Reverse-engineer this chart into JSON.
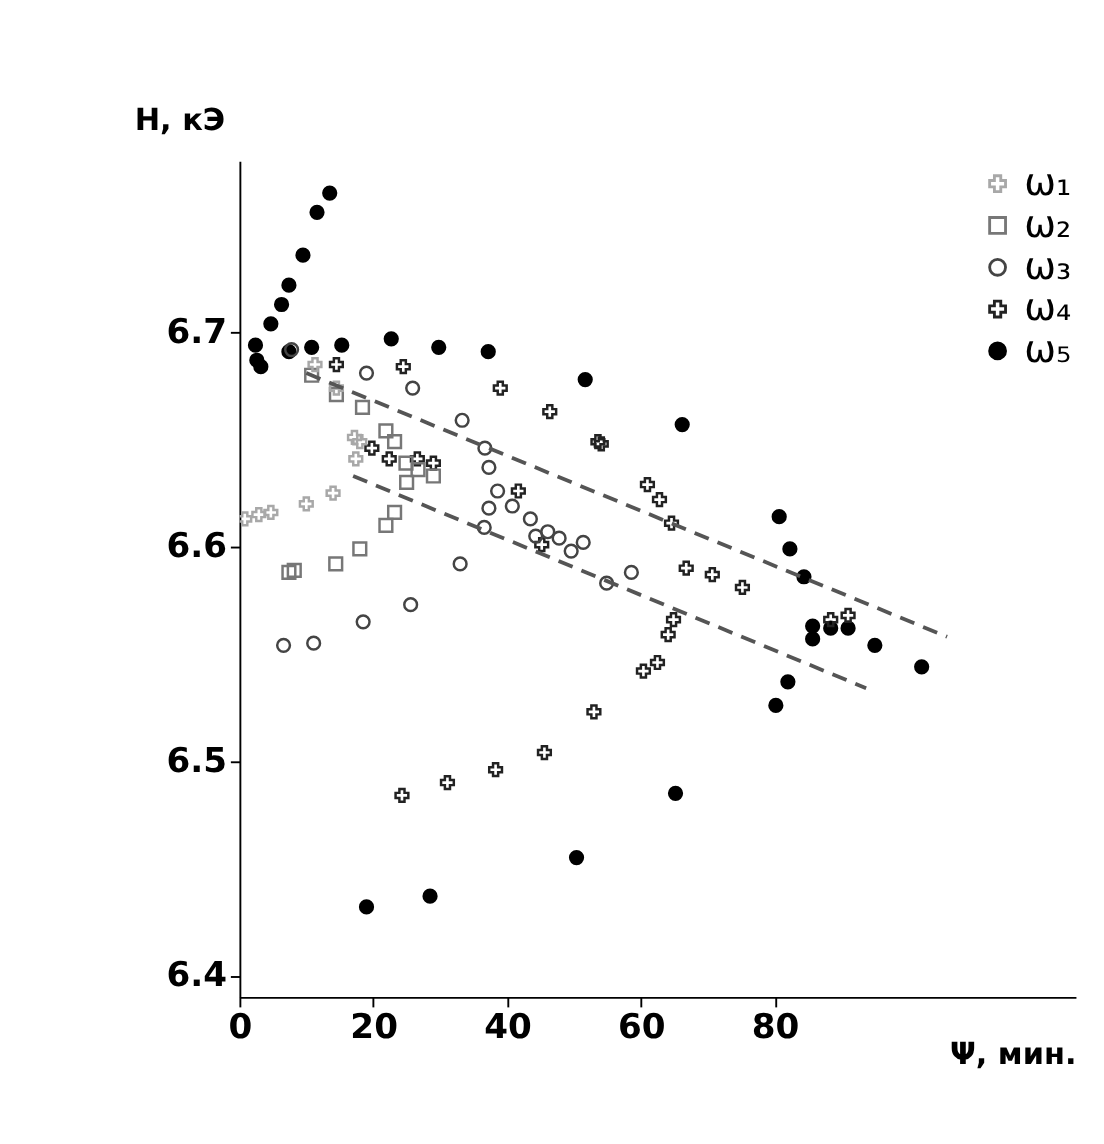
{
  "chart_data": {
    "type": "scatter",
    "xlabel": "Ψ, мин.",
    "ylabel": "H, кЭ",
    "xlim": [
      0,
      125
    ],
    "ylim": [
      6.39,
      6.78
    ],
    "xticks": [
      0,
      20,
      40,
      60,
      80
    ],
    "yticks": [
      6.4,
      6.5,
      6.6,
      6.7
    ],
    "legend": "top right",
    "series": [
      {
        "name": "ω₁",
        "color": "#a8a8a8",
        "marker": "cross",
        "x": [
          0.8,
          2.9,
          4.7,
          10,
          14,
          17.4,
          17.2,
          18,
          14.5,
          11.3
        ],
        "values": [
          6.613,
          6.615,
          6.616,
          6.62,
          6.625,
          6.641,
          6.651,
          6.649,
          6.674,
          6.685
        ]
      },
      {
        "name": "ω₂",
        "color": "#777777",
        "marker": "square",
        "x": [
          10.8,
          14.5,
          18.4,
          21.9,
          23.2,
          24.9,
          26.7,
          29,
          25,
          23.2,
          21.9,
          18,
          14.4,
          8.2,
          7.4
        ],
        "values": [
          6.68,
          6.671,
          6.665,
          6.654,
          6.649,
          6.639,
          6.636,
          6.633,
          6.63,
          6.616,
          6.61,
          6.599,
          6.592,
          6.589,
          6.588
        ]
      },
      {
        "name": "ω₃",
        "color": "#444444",
        "marker": "circle",
        "x": [
          7.8,
          19,
          25.9,
          33.3,
          36.7,
          37.3,
          38.6,
          37.3,
          40.8,
          43.5,
          44.3,
          46.1,
          47.8,
          49.6,
          51.4,
          36.6,
          33,
          54.9,
          58.6,
          6.6,
          11.1,
          18.5,
          25.6
        ],
        "values": [
          6.692,
          6.681,
          6.674,
          6.659,
          6.646,
          6.637,
          6.626,
          6.618,
          6.619,
          6.613,
          6.605,
          6.607,
          6.604,
          6.598,
          6.602,
          6.609,
          6.592,
          6.583,
          6.588,
          6.554,
          6.555,
          6.565,
          6.573
        ]
      },
      {
        "name": "ω₄",
        "color": "#222222",
        "marker": "cross",
        "x": [
          14.5,
          24.5,
          39,
          46.4,
          53.6,
          19.8,
          22.4,
          26.6,
          29,
          41.7,
          45.2,
          54.1,
          61,
          62.8,
          64.6,
          66.8,
          70.7,
          75.2,
          64.9,
          64.1,
          62.5,
          60.4,
          53,
          88.4,
          91,
          45.6,
          38.3,
          31.1,
          24.3
        ],
        "values": [
          6.685,
          6.684,
          6.674,
          6.663,
          6.649,
          6.646,
          6.641,
          6.641,
          6.639,
          6.626,
          6.601,
          6.648,
          6.629,
          6.622,
          6.611,
          6.59,
          6.587,
          6.581,
          6.566,
          6.559,
          6.546,
          6.542,
          6.523,
          6.566,
          6.568,
          6.504,
          6.496,
          6.49,
          6.484
        ]
      },
      {
        "name": "ω₅",
        "color": "#000000",
        "marker": "circle",
        "x": [
          13.5,
          11.6,
          9.5,
          7.4,
          6.3,
          4.7,
          2.4,
          2.6,
          3.2,
          7.4,
          10.8,
          15.3,
          22.7,
          29.8,
          37.2,
          51.7,
          66.2,
          80.7,
          82.3,
          84.4,
          85.7,
          88.4,
          91,
          85.7,
          82,
          80.2,
          95,
          102,
          65.2,
          50.4,
          19,
          28.5
        ],
        "values": [
          6.765,
          6.756,
          6.736,
          6.722,
          6.713,
          6.704,
          6.694,
          6.687,
          6.684,
          6.691,
          6.693,
          6.694,
          6.697,
          6.693,
          6.691,
          6.678,
          6.657,
          6.614,
          6.599,
          6.586,
          6.563,
          6.562,
          6.562,
          6.557,
          6.537,
          6.526,
          6.554,
          6.544,
          6.485,
          6.455,
          6.432,
          6.437
        ]
      },
      {
        "type": "line",
        "color": "#555555",
        "line_style": "dashed",
        "x": [
          10,
          105.8
        ],
        "values": [
          6.681,
          6.558
        ]
      },
      {
        "type": "line",
        "color": "#555555",
        "line_style": "dashed",
        "x": [
          17,
          93.7
        ],
        "values": [
          6.633,
          6.534
        ]
      }
    ]
  }
}
